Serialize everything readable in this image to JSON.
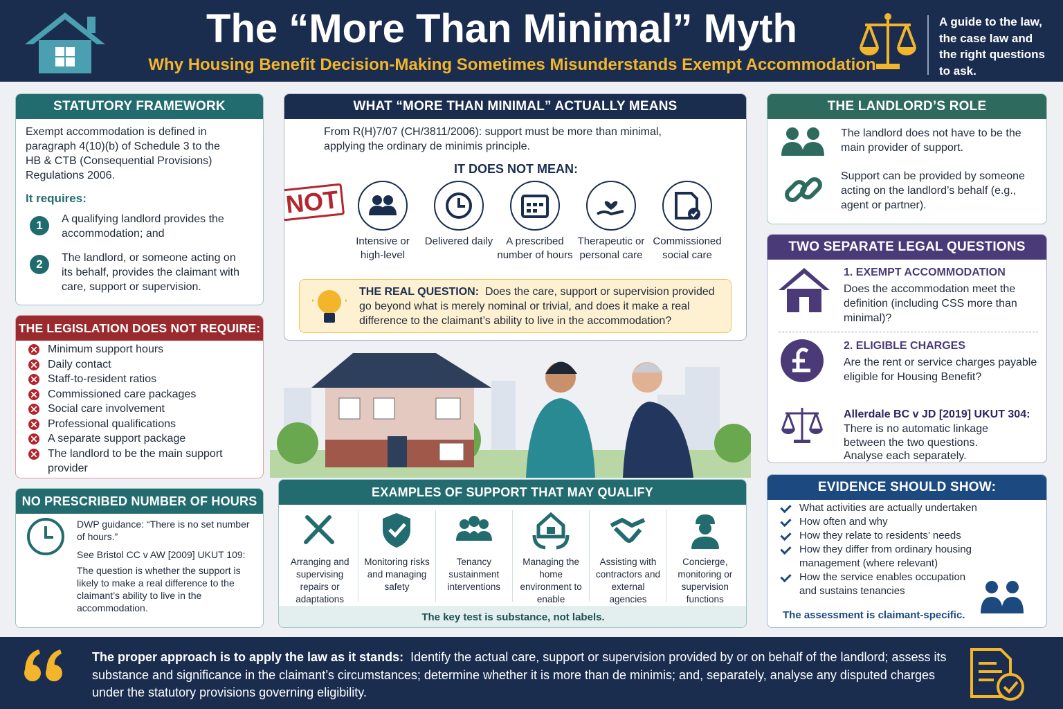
{
  "header": {
    "title": "The “More Than Minimal” Myth",
    "subtitle": "Why Housing Benefit Decision-Making Sometimes Misunderstands Exempt Accommodation",
    "tagline": "A guide to the law, the case law and the right questions to ask."
  },
  "statutory": {
    "heading": "STATUTORY FRAMEWORK",
    "intro": "Exempt accommodation is defined in paragraph 4(10)(b) of Schedule 3 to the HB & CTB (Consequential Provisions) Regulations 2006.",
    "requires_label": "It requires:",
    "items": [
      {
        "number": "1",
        "text": "A qualifying landlord provides the accommodation; and"
      },
      {
        "number": "2",
        "text": "The landlord, or someone acting on its behalf, provides the claimant with care, support or supervision."
      }
    ]
  },
  "not_require": {
    "heading": "THE LEGISLATION DOES NOT REQUIRE:",
    "items": [
      "Minimum support hours",
      "Daily contact",
      "Staff-to-resident ratios",
      "Commissioned care packages",
      "Social care involvement",
      "Professional qualifications",
      "A separate support package",
      "The landlord to be the main support provider"
    ]
  },
  "hours": {
    "heading": "NO PRESCRIBED NUMBER OF HOURS",
    "guidance": "DWP guidance: “There is no set number of hours.”",
    "case": "See Bristol CC v AW [2009] UKUT 109:",
    "text": "The question is whether the support is likely to make a real difference to the claimant’s ability to live in the accommodation."
  },
  "meaning": {
    "heading": "WHAT “MORE THAN MINIMAL” ACTUALLY MEANS",
    "intro": "From R(H)7/07 (CH/3811/2006): support must be more than minimal, applying the ordinary de minimis principle.",
    "not_mean_label": "IT DOES NOT MEAN:",
    "stamp": "NOT",
    "items": [
      "Intensive or high-level",
      "Delivered daily",
      "A prescribed number of hours",
      "Therapeutic or personal care",
      "Commissioned social care"
    ],
    "real_question_label": "THE REAL QUESTION:",
    "real_question": "Does the care, support or supervision provided go beyond what is merely nominal or trivial, and does it make a real difference to the claimant’s ability to live in the accommodation?"
  },
  "examples": {
    "heading": "EXAMPLES OF SUPPORT THAT MAY QUALIFY",
    "items": [
      "Arranging and supervising repairs or adaptations",
      "Monitoring risks and managing safety",
      "Tenancy sustainment interventions",
      "Managing the home environment to enable occupation",
      "Assisting with contractors and external agencies",
      "Concierge, monitoring or supervision functions"
    ],
    "footer": "The key test is substance, not labels."
  },
  "landlord": {
    "heading": "THE LANDLORD’S ROLE",
    "items": [
      "The landlord does not have to be the main provider of support.",
      "Support can be provided by someone acting on the landlord’s behalf (e.g., agent or partner)."
    ]
  },
  "questions": {
    "heading": "TWO SEPARATE LEGAL QUESTIONS",
    "items": [
      {
        "title": "1. EXEMPT ACCOMMODATION",
        "text": "Does the accommodation meet the definition (including CSS more than minimal)?"
      },
      {
        "title": "2. ELIGIBLE CHARGES",
        "text": "Are the rent or service charges payable eligible for Housing Benefit?"
      }
    ],
    "case_title": "Allerdale BC v JD [2019] UKUT 304:",
    "case_text": "There is no automatic linkage between the two questions. Analyse each separately."
  },
  "evidence": {
    "heading": "EVIDENCE SHOULD SHOW:",
    "items": [
      "What activities are actually undertaken",
      "How often and why",
      "How they relate to residents’ needs",
      "How they differ from ordinary housing management (where relevant)",
      "How the service enables occupation and sustains tenancies"
    ],
    "footer": "The assessment is claimant-specific."
  },
  "closing": {
    "lead": "The proper approach is to apply the law as it stands:",
    "text": "Identify the actual care, support or supervision provided by or on behalf of the landlord; assess its substance and significance in the claimant’s circumstances; determine whether it is more than de minimis; and, separately, analyse any disputed charges under the statutory provisions governing eligibility."
  }
}
